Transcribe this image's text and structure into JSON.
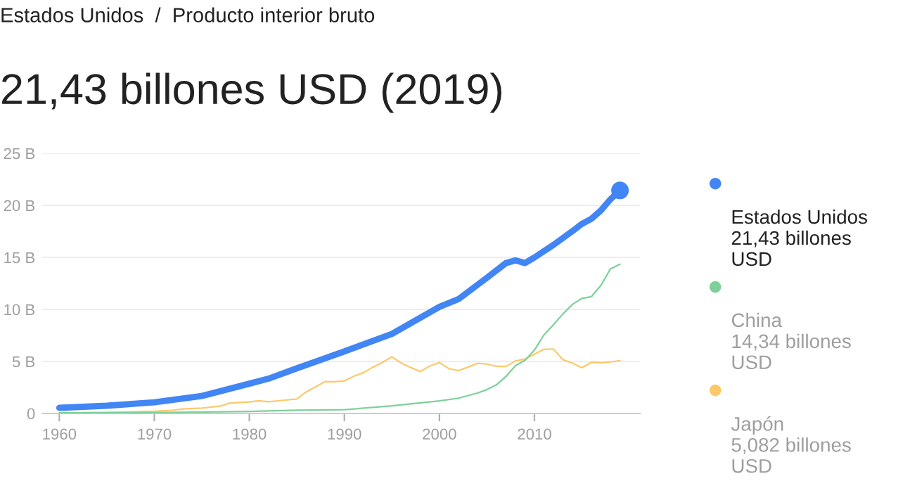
{
  "chart_data": {
    "type": "line",
    "title": "21,43 billones USD (2019)",
    "annotations": [
      "Estados Unidos  /  Producto interior bruto",
      "21,43 billones USD",
      "14,34 billones USD",
      "5,082 billones USD"
    ],
    "series": [
      {
        "name": "Estados Unidos",
        "color": "#4285f4",
        "x": [
          1960,
          1965,
          1970,
          1975,
          1980,
          1982,
          1985,
          1990,
          1995,
          2000,
          2002,
          2005,
          2007,
          2008,
          2009,
          2010,
          2012,
          2014,
          2015,
          2016,
          2017,
          2018,
          2019
        ],
        "values": [
          0.54,
          0.74,
          1.07,
          1.68,
          2.86,
          3.34,
          4.34,
          5.96,
          7.64,
          10.25,
          10.98,
          13.04,
          14.45,
          14.71,
          14.45,
          14.99,
          16.2,
          17.52,
          18.22,
          18.71,
          19.52,
          20.58,
          21.43
        ]
      },
      {
        "name": "China",
        "color": "#7ed09a",
        "x": [
          1960,
          1970,
          1980,
          1985,
          1990,
          1995,
          2000,
          2002,
          2004,
          2005,
          2006,
          2007,
          2008,
          2009,
          2010,
          2011,
          2012,
          2013,
          2014,
          2015,
          2016,
          2017,
          2018,
          2019
        ],
        "values": [
          0.06,
          0.09,
          0.19,
          0.31,
          0.36,
          0.73,
          1.21,
          1.47,
          1.96,
          2.29,
          2.75,
          3.55,
          4.59,
          5.1,
          6.09,
          7.55,
          8.53,
          9.57,
          10.48,
          11.06,
          11.23,
          12.31,
          13.89,
          14.34
        ]
      },
      {
        "name": "Japón",
        "color": "#fbc96b",
        "x": [
          1960,
          1965,
          1970,
          1972,
          1973,
          1975,
          1977,
          1978,
          1980,
          1981,
          1982,
          1984,
          1985,
          1986,
          1988,
          1989,
          1990,
          1991,
          1992,
          1993,
          1994,
          1995,
          1996,
          1997,
          1998,
          1999,
          2000,
          2001,
          2002,
          2003,
          2004,
          2005,
          2006,
          2007,
          2008,
          2009,
          2010,
          2011,
          2012,
          2013,
          2014,
          2015,
          2016,
          2017,
          2018,
          2019
        ],
        "values": [
          0.04,
          0.09,
          0.21,
          0.32,
          0.43,
          0.52,
          0.72,
          1.01,
          1.1,
          1.22,
          1.13,
          1.3,
          1.39,
          2.08,
          3.07,
          3.05,
          3.13,
          3.58,
          3.91,
          4.45,
          4.9,
          5.45,
          4.83,
          4.41,
          4.03,
          4.56,
          4.89,
          4.3,
          4.12,
          4.45,
          4.82,
          4.76,
          4.53,
          4.52,
          5.04,
          5.23,
          5.7,
          6.16,
          6.2,
          5.16,
          4.85,
          4.39,
          4.92,
          4.87,
          4.95,
          5.08
        ]
      }
    ],
    "xlim": [
      1958.2,
      2021.1
    ],
    "xticks": [
      1960,
      1970,
      1980,
      1990,
      2000,
      2010
    ],
    "ylim": [
      0,
      25
    ],
    "yticks": [
      0,
      {
        "value": 5,
        "label": "5 B"
      },
      {
        "value": 10,
        "label": "10 B"
      },
      {
        "value": 15,
        "label": "15 B"
      },
      {
        "value": 20,
        "label": "20 B"
      },
      {
        "value": 25,
        "label": "25 B"
      }
    ],
    "grid": "y",
    "legend": "right"
  }
}
